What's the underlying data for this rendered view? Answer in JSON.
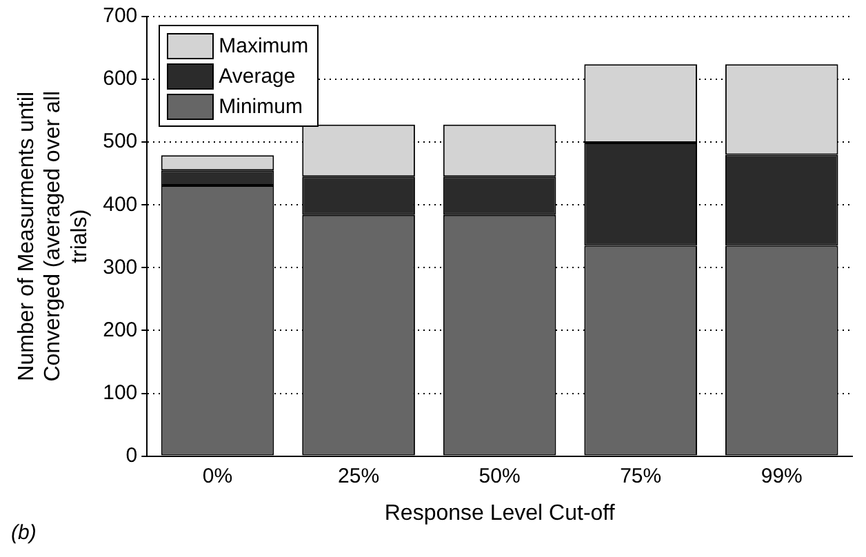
{
  "chart_data": {
    "type": "bar",
    "stacked": true,
    "xlabel": "Response Level Cut-off",
    "ylabel": "Number of Measurments until Converged (averaged over all trials)",
    "categories": [
      "0%",
      "25%",
      "50%",
      "75%",
      "99%"
    ],
    "series": [
      {
        "name": "Minimum",
        "color": "#666666",
        "values": [
          431,
          384,
          384,
          335,
          335
        ]
      },
      {
        "name": "Average",
        "color": "#2b2b2b",
        "values": [
          24,
          61,
          61,
          164,
          145
        ]
      },
      {
        "name": "Maximum",
        "color": "#d3d3d3",
        "values": [
          24,
          83,
          83,
          125,
          144
        ]
      }
    ],
    "ylim": [
      0,
      700
    ],
    "yticks": [
      0,
      100,
      200,
      300,
      400,
      500,
      600,
      700
    ],
    "grid": "y",
    "legend": "top left",
    "annotations": [
      "(b)"
    ]
  }
}
